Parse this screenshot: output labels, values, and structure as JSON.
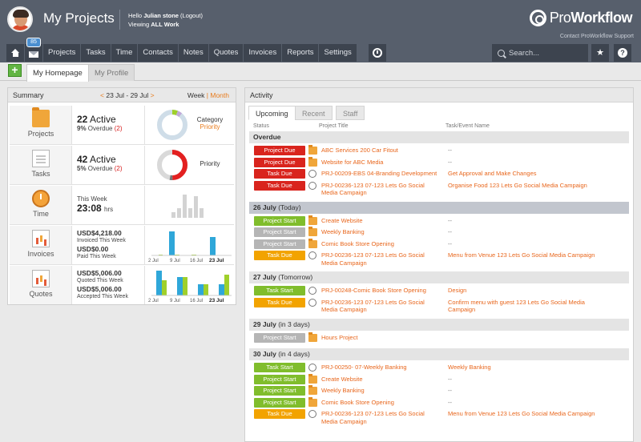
{
  "header": {
    "app_title": "My Projects",
    "hello_prefix": "Hello",
    "user_name": "Julian stone",
    "logout_label": "(Logout)",
    "viewing_prefix": "Viewing",
    "viewing_value": "ALL Work",
    "logo_pro": "Pro",
    "logo_workflow": "Workflow",
    "support_link": "Contact ProWorkflow Support"
  },
  "nav": {
    "mail_badge": "85",
    "tabs": [
      "Projects",
      "Tasks",
      "Time",
      "Contacts",
      "Notes",
      "Quotes",
      "Invoices",
      "Reports",
      "Settings"
    ],
    "search_placeholder": "Search...",
    "star_glyph": "★",
    "help_glyph": "?"
  },
  "subtabs": {
    "add_glyph": "+",
    "homepage": "My Homepage",
    "profile": "My Profile"
  },
  "summary": {
    "title": "Summary",
    "prev_arrow": "<",
    "date_range": "23 Jul - 29 Jul",
    "next_arrow": ">",
    "period_week": "Week",
    "period_sep": "|",
    "period_month": "Month",
    "projects": {
      "label": "Projects",
      "active_count": "22",
      "active_label": "Active",
      "overdue_pct": "9%",
      "overdue_label": "Overdue",
      "overdue_count": "(2)",
      "legend_1": "Category",
      "legend_2": "Priority"
    },
    "tasks": {
      "label": "Tasks",
      "active_count": "42",
      "active_label": "Active",
      "overdue_pct": "5%",
      "overdue_label": "Overdue",
      "overdue_count": "(2)",
      "legend": "Priority"
    },
    "time": {
      "label": "Time",
      "period": "This Week",
      "hours": "23:08",
      "unit": "hrs"
    },
    "invoices": {
      "label": "Invoices",
      "amount_1": "USD$4,218.00",
      "caption_1": "Invoiced This Week",
      "amount_2": "USD$0.00",
      "caption_2": "Paid This Week"
    },
    "quotes": {
      "label": "Quotes",
      "amount_1": "USD$5,006.00",
      "caption_1": "Quoted This Week",
      "amount_2": "USD$5,006.00",
      "caption_2": "Accepted This Week"
    },
    "bar_axis": [
      "2 Jul",
      "9 Jul",
      "16 Jul",
      "23 Jul"
    ]
  },
  "activity": {
    "title": "Activity",
    "tabs": [
      "Upcoming",
      "Recent",
      "Staff"
    ],
    "col_status": "Status",
    "col_project": "Project Title",
    "col_task": "Task/Event Name",
    "groups": [
      {
        "title": "Overdue",
        "suffix": "",
        "rows": [
          {
            "status": "Project Due",
            "kind": "red",
            "icon": "folder",
            "title": "ABC Services 200 Car Fitout",
            "task": "--"
          },
          {
            "status": "Project Due",
            "kind": "red",
            "icon": "folder",
            "title": "Website for ABC Media",
            "task": "--"
          },
          {
            "status": "Task Due",
            "kind": "red",
            "icon": "circle",
            "title": "PRJ-00209-EBS 04-Branding Development",
            "task": "Get Approval and Make Changes"
          },
          {
            "status": "Task Due",
            "kind": "red",
            "icon": "circle",
            "title": "PRJ-00236-123 07-123 Lets Go Social Media Campaign",
            "task": "Organise Food 123 Lets Go Social Media Campaign"
          }
        ]
      },
      {
        "title": "26 July",
        "suffix": "(Today)",
        "rows": [
          {
            "status": "Project Start",
            "kind": "green",
            "icon": "folder",
            "title": "Create Website",
            "task": "--"
          },
          {
            "status": "Project Start",
            "kind": "grey",
            "icon": "folder",
            "title": "Weekly Banking",
            "task": "--"
          },
          {
            "status": "Project Start",
            "kind": "grey",
            "icon": "folder",
            "title": "Comic Book Store Opening",
            "task": "--"
          },
          {
            "status": "Task Due",
            "kind": "yellow",
            "icon": "circle",
            "title": "PRJ-00236-123 07-123 Lets Go Social Media Campaign",
            "task": "Menu from Venue 123 Lets Go Social Media Campaign"
          }
        ]
      },
      {
        "title": "27 July",
        "suffix": "(Tomorrow)",
        "rows": [
          {
            "status": "Task Start",
            "kind": "green",
            "icon": "circle",
            "title": "PRJ-00248-Comic Book Store Opening",
            "task": "Design"
          },
          {
            "status": "Task Due",
            "kind": "yellow",
            "icon": "circle",
            "title": "PRJ-00236-123 07-123 Lets Go Social Media Campaign",
            "task": "Confirm menu with guest 123 Lets Go Social Media Campaign"
          }
        ]
      },
      {
        "title": "29 July",
        "suffix": "(in 3 days)",
        "rows": [
          {
            "status": "Project Start",
            "kind": "grey",
            "icon": "folder",
            "title": "Hours Project",
            "task": ""
          }
        ]
      },
      {
        "title": "30 July",
        "suffix": "(in 4 days)",
        "rows": [
          {
            "status": "Task Start",
            "kind": "green",
            "icon": "circle",
            "title": "PRJ-00250- 07-Weekly Banking",
            "task": "Weekly Banking"
          },
          {
            "status": "Project Start",
            "kind": "green",
            "icon": "folder",
            "title": "Create Website",
            "task": "--"
          },
          {
            "status": "Project Start",
            "kind": "green",
            "icon": "folder",
            "title": "Weekly Banking",
            "task": "--"
          },
          {
            "status": "Project Start",
            "kind": "green",
            "icon": "folder",
            "title": "Comic Book Store Opening",
            "task": "--"
          },
          {
            "status": "Task Due",
            "kind": "yellow",
            "icon": "circle",
            "title": "PRJ-00236-123 07-123 Lets Go Social Media Campaign",
            "task": "Menu from Venue 123 Lets Go Social Media Campaign"
          }
        ]
      }
    ]
  },
  "colors": {
    "header_bg": "#575f6c",
    "nav_tab_bg": "#3d444f",
    "accent_orange": "#e87c1e",
    "overdue_red": "#d9241d",
    "start_green": "#80bd2c",
    "due_yellow": "#f2a300",
    "bar_blue": "#2fa7d9",
    "bar_green": "#9fd02b"
  }
}
